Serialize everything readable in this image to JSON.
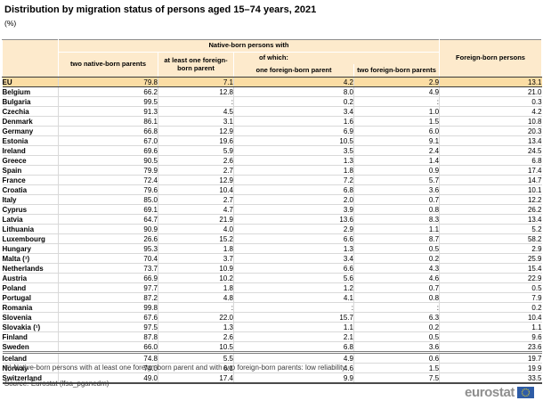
{
  "title": "Distribution by migration status of persons aged 15–74 years, 2021",
  "subtitle": "(%)",
  "chart_data": {
    "type": "table",
    "title": "Distribution by migration status of persons aged 15–74 years, 2021",
    "unit": "%",
    "missing_value_symbol": ":",
    "header": {
      "group": "Native-born persons with",
      "of_which": "of which:",
      "columns": [
        "two native-born parents",
        "at least one foreign-born parent",
        "one foreign-born parent",
        "two foreign-born parents",
        "Foreign-born persons"
      ]
    },
    "rows": [
      {
        "label": "EU",
        "values": [
          "79.8",
          "7.1",
          "4.2",
          "2.9",
          "13.1"
        ],
        "style": "eu"
      },
      {
        "label": "Belgium",
        "values": [
          "66.2",
          "12.8",
          "8.0",
          "4.9",
          "21.0"
        ]
      },
      {
        "label": "Bulgaria",
        "values": [
          "99.5",
          ":",
          "0.2",
          ":",
          "0.3"
        ]
      },
      {
        "label": "Czechia",
        "values": [
          "91.3",
          "4.5",
          "3.4",
          "1.0",
          "4.2"
        ]
      },
      {
        "label": "Denmark",
        "values": [
          "86.1",
          "3.1",
          "1.6",
          "1.5",
          "10.8"
        ]
      },
      {
        "label": "Germany",
        "values": [
          "66.8",
          "12.9",
          "6.9",
          "6.0",
          "20.3"
        ]
      },
      {
        "label": "Estonia",
        "values": [
          "67.0",
          "19.6",
          "10.5",
          "9.1",
          "13.4"
        ]
      },
      {
        "label": "Ireland",
        "values": [
          "69.6",
          "5.9",
          "3.5",
          "2.4",
          "24.5"
        ]
      },
      {
        "label": "Greece",
        "values": [
          "90.5",
          "2.6",
          "1.3",
          "1.4",
          "6.8"
        ]
      },
      {
        "label": "Spain",
        "values": [
          "79.9",
          "2.7",
          "1.8",
          "0.9",
          "17.4"
        ]
      },
      {
        "label": "France",
        "values": [
          "72.4",
          "12.9",
          "7.2",
          "5.7",
          "14.7"
        ]
      },
      {
        "label": "Croatia",
        "values": [
          "79.6",
          "10.4",
          "6.8",
          "3.6",
          "10.1"
        ]
      },
      {
        "label": "Italy",
        "values": [
          "85.0",
          "2.7",
          "2.0",
          "0.7",
          "12.2"
        ]
      },
      {
        "label": "Cyprus",
        "values": [
          "69.1",
          "4.7",
          "3.9",
          "0.8",
          "26.2"
        ]
      },
      {
        "label": "Latvia",
        "values": [
          "64.7",
          "21.9",
          "13.6",
          "8.3",
          "13.4"
        ]
      },
      {
        "label": "Lithuania",
        "values": [
          "90.9",
          "4.0",
          "2.9",
          "1.1",
          "5.2"
        ]
      },
      {
        "label": "Luxembourg",
        "values": [
          "26.6",
          "15.2",
          "6.6",
          "8.7",
          "58.2"
        ]
      },
      {
        "label": "Hungary",
        "values": [
          "95.3",
          "1.8",
          "1.3",
          "0.5",
          "2.9"
        ]
      },
      {
        "label": "Malta (¹)",
        "values": [
          "70.4",
          "3.7",
          "3.4",
          "0.2",
          "25.9"
        ]
      },
      {
        "label": "Netherlands",
        "values": [
          "73.7",
          "10.9",
          "6.6",
          "4.3",
          "15.4"
        ]
      },
      {
        "label": "Austria",
        "values": [
          "66.9",
          "10.2",
          "5.6",
          "4.6",
          "22.9"
        ]
      },
      {
        "label": "Poland",
        "values": [
          "97.7",
          "1.8",
          "1.2",
          "0.7",
          "0.5"
        ]
      },
      {
        "label": "Portugal",
        "values": [
          "87.2",
          "4.8",
          "4.1",
          "0.8",
          "7.9"
        ]
      },
      {
        "label": "Romania",
        "values": [
          "99.8",
          ":",
          ":",
          ":",
          "0.2"
        ]
      },
      {
        "label": "Slovenia",
        "values": [
          "67.6",
          "22.0",
          "15.7",
          "6.3",
          "10.4"
        ]
      },
      {
        "label": "Slovakia (¹)",
        "values": [
          "97.5",
          "1.3",
          "1.1",
          "0.2",
          "1.1"
        ]
      },
      {
        "label": "Finland",
        "values": [
          "87.8",
          "2.6",
          "2.1",
          "0.5",
          "9.6"
        ]
      },
      {
        "label": "Sweden",
        "values": [
          "66.0",
          "10.5",
          "6.8",
          "3.6",
          "23.6"
        ],
        "divider_after": true
      },
      {
        "label": "Iceland",
        "values": [
          "74.8",
          "5.5",
          "4.9",
          "0.6",
          "19.7"
        ]
      },
      {
        "label": "Norway",
        "values": [
          "74.0",
          "6.1",
          "4.6",
          "1.5",
          "19.9"
        ]
      },
      {
        "label": "Switzerland",
        "values": [
          "49.0",
          "17.4",
          "9.9",
          "7.5",
          "33.5"
        ]
      }
    ]
  },
  "footnote": "(¹) Native-born persons with at least one foreign-born parent and with two foreign-born parents: low reliability.",
  "source": {
    "label": "Source:",
    "text": "Eurostat (lfsa_pganedm)"
  },
  "logo": {
    "text": "eurostat"
  },
  "colors": {
    "header_bg": "#fdeacc",
    "eu_row_bg": "#fbdda4",
    "eu_flag_blue": "#2e5ca6",
    "eu_stars_yellow": "#d4c531",
    "logo_gray": "#8f8f8f"
  }
}
